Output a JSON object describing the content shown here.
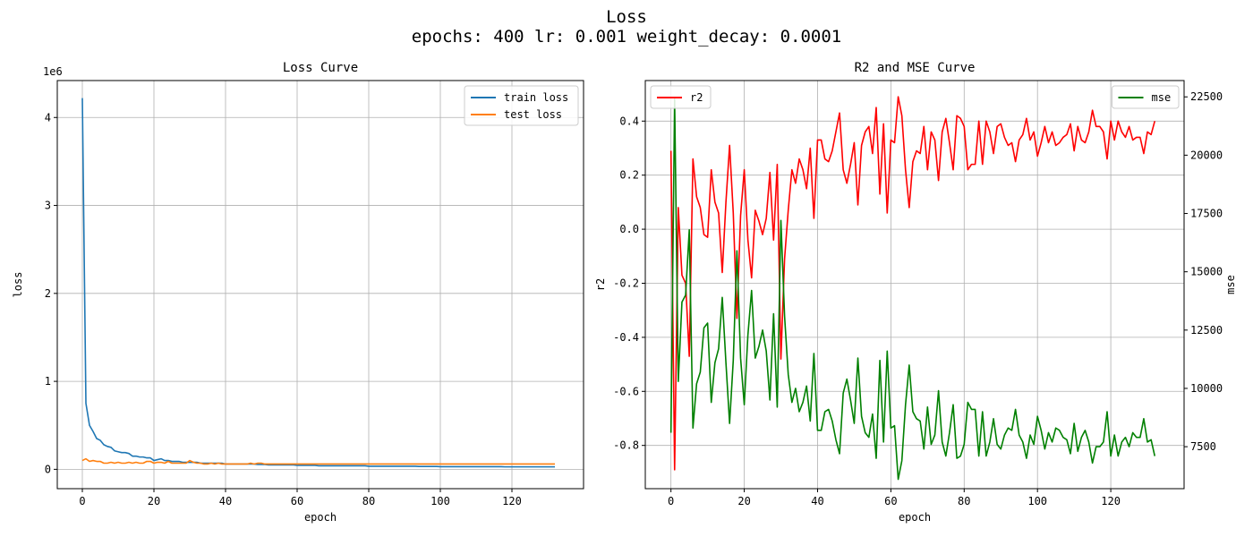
{
  "figure": {
    "title_line1": "Loss",
    "title_line2": "epochs: 400 lr: 0.001 weight_decay: 0.0001"
  },
  "chart_data": [
    {
      "type": "line",
      "title": "Loss Curve",
      "xlabel": "epoch",
      "ylabel": "loss",
      "y_offset_label": "1e6",
      "xlim": [
        -7,
        140
      ],
      "ylim": [
        -0.22,
        4.42
      ],
      "x_ticks": [
        0,
        20,
        40,
        60,
        80,
        100,
        120
      ],
      "y_ticks": [
        0,
        1,
        2,
        3,
        4
      ],
      "grid": true,
      "legend_position": "upper right",
      "x": [
        0,
        1,
        2,
        3,
        4,
        5,
        6,
        7,
        8,
        9,
        10,
        11,
        12,
        13,
        14,
        15,
        16,
        17,
        18,
        19,
        20,
        21,
        22,
        23,
        24,
        25,
        26,
        27,
        28,
        29,
        30,
        31,
        32,
        33,
        34,
        35,
        36,
        37,
        38,
        39,
        40,
        41,
        42,
        43,
        44,
        45,
        46,
        47,
        48,
        49,
        50,
        51,
        52,
        53,
        54,
        55,
        56,
        57,
        58,
        59,
        60,
        61,
        62,
        63,
        64,
        65,
        66,
        67,
        68,
        69,
        70,
        71,
        72,
        73,
        74,
        75,
        76,
        77,
        78,
        79,
        80,
        81,
        82,
        83,
        84,
        85,
        86,
        87,
        88,
        89,
        90,
        91,
        92,
        93,
        94,
        95,
        96,
        97,
        98,
        99,
        100,
        101,
        102,
        103,
        104,
        105,
        106,
        107,
        108,
        109,
        110,
        111,
        112,
        113,
        114,
        115,
        116,
        117,
        118,
        119,
        120,
        121,
        122,
        123,
        124,
        125,
        126,
        127,
        128,
        129,
        130,
        131,
        132
      ],
      "series": [
        {
          "name": "train loss",
          "color": "#1f77b4",
          "values": [
            4.22,
            0.75,
            0.5,
            0.43,
            0.35,
            0.33,
            0.28,
            0.26,
            0.25,
            0.21,
            0.2,
            0.19,
            0.19,
            0.18,
            0.15,
            0.15,
            0.14,
            0.14,
            0.13,
            0.13,
            0.1,
            0.11,
            0.12,
            0.1,
            0.1,
            0.09,
            0.09,
            0.09,
            0.08,
            0.08,
            0.08,
            0.08,
            0.08,
            0.07,
            0.07,
            0.07,
            0.07,
            0.07,
            0.07,
            0.07,
            0.06,
            0.06,
            0.06,
            0.06,
            0.06,
            0.06,
            0.06,
            0.06,
            0.06,
            0.055,
            0.055,
            0.055,
            0.05,
            0.05,
            0.05,
            0.05,
            0.05,
            0.05,
            0.05,
            0.05,
            0.045,
            0.045,
            0.045,
            0.045,
            0.045,
            0.045,
            0.04,
            0.04,
            0.04,
            0.04,
            0.04,
            0.04,
            0.04,
            0.04,
            0.04,
            0.04,
            0.04,
            0.04,
            0.04,
            0.04,
            0.035,
            0.035,
            0.035,
            0.035,
            0.035,
            0.035,
            0.035,
            0.035,
            0.035,
            0.035,
            0.035,
            0.035,
            0.035,
            0.035,
            0.033,
            0.033,
            0.033,
            0.033,
            0.033,
            0.033,
            0.03,
            0.03,
            0.03,
            0.03,
            0.03,
            0.03,
            0.03,
            0.03,
            0.03,
            0.03,
            0.03,
            0.03,
            0.03,
            0.03,
            0.03,
            0.03,
            0.03,
            0.03,
            0.028,
            0.028,
            0.028,
            0.028,
            0.028,
            0.028,
            0.028,
            0.028,
            0.028,
            0.028,
            0.028,
            0.028,
            0.028,
            0.028,
            0.028
          ]
        },
        {
          "name": "test loss",
          "color": "#ff7f0e",
          "values": [
            0.1,
            0.12,
            0.09,
            0.1,
            0.09,
            0.09,
            0.07,
            0.07,
            0.08,
            0.07,
            0.08,
            0.07,
            0.07,
            0.08,
            0.07,
            0.08,
            0.07,
            0.07,
            0.09,
            0.09,
            0.07,
            0.08,
            0.08,
            0.07,
            0.09,
            0.07,
            0.07,
            0.07,
            0.07,
            0.07,
            0.1,
            0.08,
            0.07,
            0.07,
            0.06,
            0.06,
            0.07,
            0.06,
            0.07,
            0.06,
            0.06,
            0.06,
            0.06,
            0.06,
            0.06,
            0.06,
            0.06,
            0.07,
            0.06,
            0.07,
            0.07,
            0.06,
            0.06,
            0.06,
            0.06,
            0.06,
            0.06,
            0.06,
            0.06,
            0.06,
            0.06,
            0.06,
            0.06,
            0.06,
            0.06,
            0.06,
            0.06,
            0.06,
            0.06,
            0.06,
            0.06,
            0.06,
            0.06,
            0.06,
            0.06,
            0.06,
            0.06,
            0.06,
            0.06,
            0.06,
            0.06,
            0.06,
            0.06,
            0.06,
            0.06,
            0.06,
            0.06,
            0.06,
            0.06,
            0.06,
            0.06,
            0.06,
            0.06,
            0.06,
            0.06,
            0.06,
            0.06,
            0.06,
            0.06,
            0.06,
            0.06,
            0.06,
            0.06,
            0.06,
            0.06,
            0.06,
            0.06,
            0.06,
            0.06,
            0.06,
            0.06,
            0.06,
            0.06,
            0.06,
            0.06,
            0.06,
            0.06,
            0.06,
            0.06,
            0.06,
            0.06,
            0.06,
            0.06,
            0.06,
            0.06,
            0.06,
            0.06,
            0.06,
            0.06,
            0.06,
            0.06,
            0.06,
            0.06
          ]
        }
      ]
    },
    {
      "type": "line",
      "title": "R2 and MSE Curve",
      "xlabel": "epoch",
      "ylabel": "r2",
      "ylabel_right": "mse",
      "xlim": [
        -7,
        140
      ],
      "ylim": [
        -0.96,
        0.55
      ],
      "ylim_right": [
        5700,
        23200
      ],
      "x_ticks": [
        0,
        20,
        40,
        60,
        80,
        100,
        120
      ],
      "y_ticks": [
        -0.8,
        -0.6,
        -0.4,
        -0.2,
        0.0,
        0.2,
        0.4
      ],
      "y_ticks_right": [
        7500,
        10000,
        12500,
        15000,
        17500,
        20000,
        22500
      ],
      "grid": true,
      "legend_position_left": "upper left",
      "legend_position_right": "upper right",
      "x": [
        0,
        1,
        2,
        3,
        4,
        5,
        6,
        7,
        8,
        9,
        10,
        11,
        12,
        13,
        14,
        15,
        16,
        17,
        18,
        19,
        20,
        21,
        22,
        23,
        24,
        25,
        26,
        27,
        28,
        29,
        30,
        31,
        32,
        33,
        34,
        35,
        36,
        37,
        38,
        39,
        40,
        41,
        42,
        43,
        44,
        45,
        46,
        47,
        48,
        49,
        50,
        51,
        52,
        53,
        54,
        55,
        56,
        57,
        58,
        59,
        60,
        61,
        62,
        63,
        64,
        65,
        66,
        67,
        68,
        69,
        70,
        71,
        72,
        73,
        74,
        75,
        76,
        77,
        78,
        79,
        80,
        81,
        82,
        83,
        84,
        85,
        86,
        87,
        88,
        89,
        90,
        91,
        92,
        93,
        94,
        95,
        96,
        97,
        98,
        99,
        100,
        101,
        102,
        103,
        104,
        105,
        106,
        107,
        108,
        109,
        110,
        111,
        112,
        113,
        114,
        115,
        116,
        117,
        118,
        119,
        120,
        121,
        122,
        123,
        124,
        125,
        126,
        127,
        128,
        129,
        130,
        131,
        132
      ],
      "series": [
        {
          "name": "r2",
          "axis": "left",
          "color": "#ff0000",
          "values": [
            0.29,
            -0.89,
            0.08,
            -0.17,
            -0.2,
            -0.47,
            0.26,
            0.12,
            0.08,
            -0.02,
            -0.03,
            0.22,
            0.1,
            0.06,
            -0.16,
            0.1,
            0.31,
            0.06,
            -0.33,
            0.05,
            0.22,
            -0.04,
            -0.18,
            0.07,
            0.03,
            -0.02,
            0.04,
            0.21,
            -0.04,
            0.24,
            -0.48,
            -0.11,
            0.07,
            0.22,
            0.17,
            0.26,
            0.22,
            0.15,
            0.3,
            0.04,
            0.33,
            0.33,
            0.26,
            0.25,
            0.29,
            0.36,
            0.43,
            0.22,
            0.17,
            0.24,
            0.32,
            0.09,
            0.31,
            0.36,
            0.38,
            0.28,
            0.45,
            0.13,
            0.39,
            0.06,
            0.33,
            0.32,
            0.49,
            0.42,
            0.22,
            0.08,
            0.25,
            0.29,
            0.28,
            0.38,
            0.22,
            0.36,
            0.33,
            0.18,
            0.36,
            0.41,
            0.32,
            0.22,
            0.42,
            0.41,
            0.38,
            0.22,
            0.24,
            0.24,
            0.4,
            0.24,
            0.4,
            0.36,
            0.28,
            0.38,
            0.39,
            0.34,
            0.31,
            0.32,
            0.25,
            0.33,
            0.35,
            0.41,
            0.33,
            0.36,
            0.27,
            0.32,
            0.38,
            0.32,
            0.36,
            0.31,
            0.32,
            0.34,
            0.35,
            0.39,
            0.29,
            0.38,
            0.33,
            0.32,
            0.36,
            0.44,
            0.38,
            0.38,
            0.36,
            0.26,
            0.4,
            0.33,
            0.4,
            0.36,
            0.34,
            0.38,
            0.33,
            0.34,
            0.34,
            0.28,
            0.36,
            0.35,
            0.4
          ]
        },
        {
          "name": "mse",
          "axis": "right",
          "color": "#008000",
          "values": [
            8100,
            22400,
            10300,
            13700,
            14000,
            16800,
            8300,
            10200,
            10700,
            12600,
            12800,
            9400,
            11100,
            11700,
            13900,
            11100,
            8500,
            11200,
            15900,
            11300,
            9300,
            12300,
            14200,
            11300,
            11800,
            12500,
            11600,
            9500,
            13200,
            9200,
            17200,
            13100,
            10600,
            9400,
            10000,
            9000,
            9400,
            10100,
            8600,
            11500,
            8200,
            8200,
            9000,
            9100,
            8600,
            7800,
            7200,
            9800,
            10400,
            9500,
            8500,
            11300,
            8800,
            8100,
            7900,
            8900,
            7000,
            11200,
            7700,
            11600,
            8300,
            8400,
            6100,
            6900,
            9300,
            11000,
            9000,
            8700,
            8600,
            7400,
            9200,
            7600,
            8000,
            9900,
            7700,
            7100,
            8100,
            9300,
            7000,
            7100,
            7600,
            9400,
            9100,
            9100,
            7100,
            9000,
            7100,
            7700,
            8700,
            7600,
            7400,
            8000,
            8300,
            8200,
            9100,
            8000,
            7700,
            7000,
            8000,
            7600,
            8800,
            8200,
            7400,
            8100,
            7700,
            8300,
            8200,
            7900,
            7800,
            7200,
            8500,
            7300,
            7900,
            8200,
            7700,
            6800,
            7500,
            7500,
            7700,
            9000,
            7100,
            8000,
            7100,
            7700,
            7900,
            7500,
            8100,
            7900,
            7900,
            8700,
            7700,
            7800,
            7100
          ]
        }
      ]
    }
  ]
}
